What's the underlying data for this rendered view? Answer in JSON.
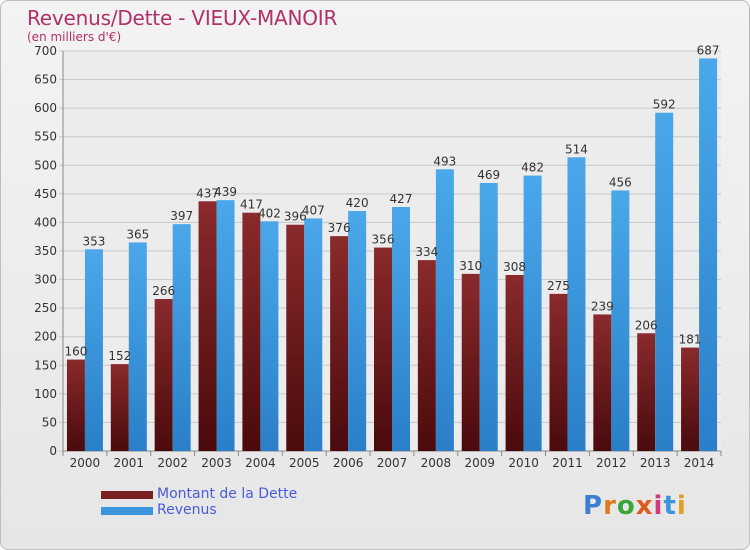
{
  "header": {
    "title": "Revenus/Dette - VIEUX-MANOIR",
    "subtitle": "(en milliers d'€)"
  },
  "colors": {
    "dette": "#7a1f22",
    "revenus": "#3a95dd",
    "grid": "#c8c8c8",
    "title": "#b0306a"
  },
  "chart_data": {
    "type": "bar",
    "title": "Revenus/Dette - VIEUX-MANOIR",
    "subtitle": "(en milliers d'€)",
    "categories": [
      "2000",
      "2001",
      "2002",
      "2003",
      "2004",
      "2005",
      "2006",
      "2007",
      "2008",
      "2009",
      "2010",
      "2011",
      "2012",
      "2013",
      "2014"
    ],
    "series": [
      {
        "name": "Montant de la Dette",
        "values": [
          160,
          152,
          266,
          437,
          417,
          396,
          376,
          356,
          334,
          310,
          308,
          275,
          239,
          206,
          181
        ]
      },
      {
        "name": "Revenus",
        "values": [
          353,
          365,
          397,
          439,
          402,
          407,
          420,
          427,
          493,
          469,
          482,
          514,
          456,
          592,
          687
        ]
      }
    ],
    "ylim": [
      0,
      700
    ],
    "yticks": [
      0,
      50,
      100,
      150,
      200,
      250,
      300,
      350,
      400,
      450,
      500,
      550,
      600,
      650,
      700
    ],
    "grid": true,
    "legend_position": "bottom-left"
  },
  "legend": {
    "items": [
      {
        "label": "Montant de la Dette",
        "color": "#7a1f22"
      },
      {
        "label": "Revenus",
        "color": "#3a95dd"
      }
    ]
  },
  "logo": {
    "text": "Proxiti"
  }
}
